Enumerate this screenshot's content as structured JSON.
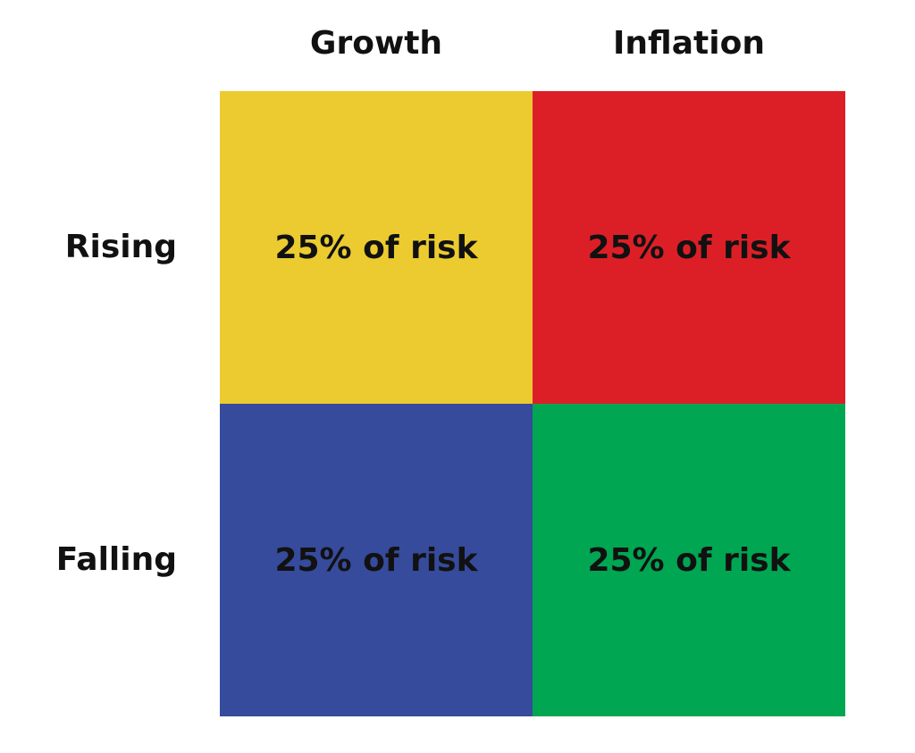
{
  "columns": [
    "Growth",
    "Inflation"
  ],
  "rows": [
    "Rising",
    "Falling"
  ],
  "cells": [
    [
      {
        "text": "25% of risk",
        "color": "#eccb30"
      },
      {
        "text": "25% of risk",
        "color": "#dc1f27"
      }
    ],
    [
      {
        "text": "25% of risk",
        "color": "#364b9c"
      },
      {
        "text": "25% of risk",
        "color": "#00a651"
      }
    ]
  ]
}
